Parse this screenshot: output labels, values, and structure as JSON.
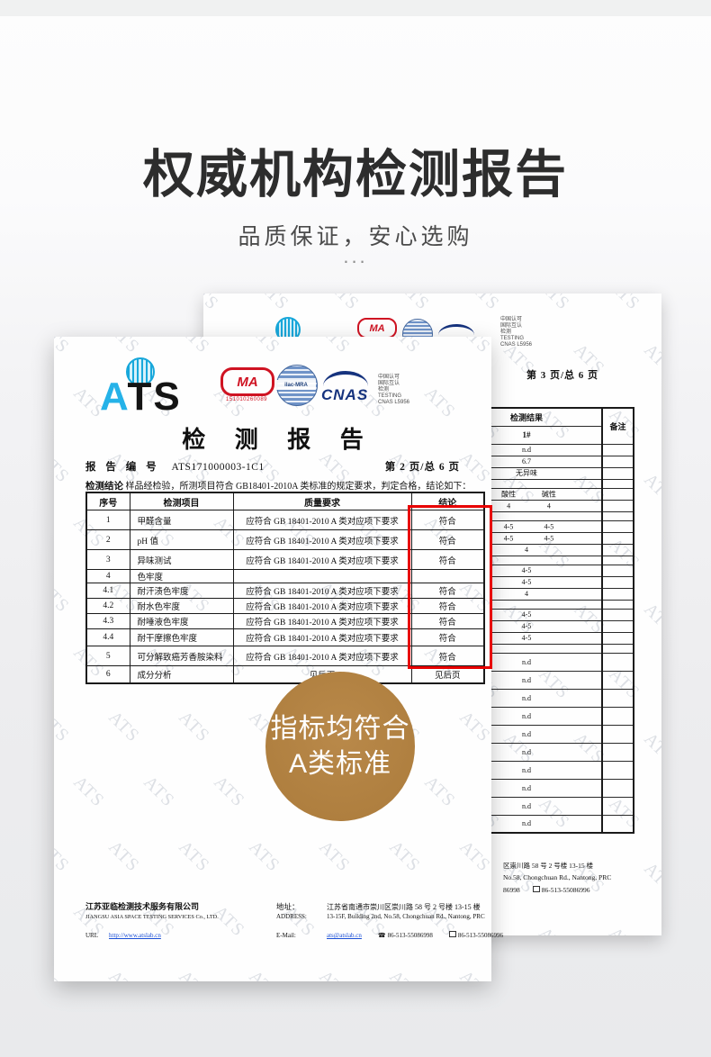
{
  "page": {
    "title": "权威机构检测报告",
    "subtitle": "品质保证，安心选购",
    "dots": "..."
  },
  "watermark": {
    "text": "ATS"
  },
  "badge": {
    "line1": "指标均符合",
    "line2": "A类标准",
    "color": "#b2813f"
  },
  "front_doc": {
    "logos": {
      "ats_a": "A",
      "ats_ts": "TS",
      "cma_text": "MA",
      "cma_number": "151010260089",
      "ilac_text": "ilac-MRA",
      "cnas_text": "CNAS",
      "cnas_side_lines": [
        "中国认可",
        "国际互认",
        "检测",
        "TESTING",
        "CNAS L5956"
      ]
    },
    "report_title": "检 测 报 告",
    "report_no_label": "报 告 编 号",
    "report_no": "ATS171000003-1C1",
    "page_label": "第 2 页/总 6 页",
    "conclusion_label": "检测结论",
    "conclusion_text": "样品经检验，所测项目符合 GB18401-2010A 类标准的规定要求，判定合格，结论如下：",
    "table": {
      "headers": [
        "序号",
        "检测项目",
        "质量要求",
        "结论"
      ],
      "rows": [
        [
          "1",
          "甲醛含量",
          "应符合 GB 18401-2010 A 类对应项下要求",
          "符合"
        ],
        [
          "2",
          "pH 值",
          "应符合 GB 18401-2010 A 类对应项下要求",
          "符合"
        ],
        [
          "3",
          "异味测试",
          "应符合 GB 18401-2010 A 类对应项下要求",
          "符合"
        ],
        [
          "4",
          "色牢度",
          "",
          ""
        ],
        [
          "4.1",
          "耐汗渍色牢度",
          "应符合 GB 18401-2010 A 类对应项下要求",
          "符合"
        ],
        [
          "4.2",
          "耐水色牢度",
          "应符合 GB 18401-2010 A 类对应项下要求",
          "符合"
        ],
        [
          "4.3",
          "耐唾液色牢度",
          "应符合 GB 18401-2010 A 类对应项下要求",
          "符合"
        ],
        [
          "4.4",
          "耐干摩擦色牢度",
          "应符合 GB 18401-2010 A 类对应项下要求",
          "符合"
        ],
        [
          "5",
          "可分解致癌芳香胺染料",
          "应符合 GB 18401-2010 A 类对应项下要求",
          "符合"
        ],
        [
          "6",
          "成分分析",
          "见后页",
          "见后页"
        ]
      ]
    },
    "footer": {
      "company_cn": "江苏亚临检测技术服务有限公司",
      "company_en": "JIANGSU ASIA SPACE TESTING SERVICES Co., LTD.",
      "url_label": "URL",
      "url": "http://www.atslab.cn",
      "addr_label_cn": "地址：",
      "addr_cn": "江苏省南通市崇川区崇川路 58 号 2 号楼 13-15 楼",
      "addr_label_en": "ADDRESS:",
      "addr_en": "13-15F, Building 2nd, No.58, Chongchuan Rd., Nantong, PRC",
      "email_label": "E-Mail:",
      "email": "ats@atslab.cn",
      "tel": "86-513-55086998",
      "fax": "86-513-55086996"
    }
  },
  "back_doc": {
    "page_label": "第 3 页/总 6 页",
    "cma_text": "MA",
    "cnas_text": "CNAS",
    "side_lines": [
      "中国认可",
      "国际互认",
      "检测",
      "TESTING",
      "CNAS L5956"
    ],
    "table": {
      "header_result": "检测结果",
      "header_remark": "备注",
      "sub_header": "1#",
      "rows": [
        {
          "kind": "single",
          "value": "n.d"
        },
        {
          "kind": "single",
          "value": "6.7"
        },
        {
          "kind": "single",
          "value": "无异味"
        },
        {
          "kind": "spacer"
        },
        {
          "kind": "pair",
          "left": "酸性",
          "right": "碱性"
        },
        {
          "kind": "pair",
          "left": "4",
          "right": "4"
        },
        {
          "kind": "spacer"
        },
        {
          "kind": "pair",
          "left": "4-5",
          "right": "4-5"
        },
        {
          "kind": "pair",
          "left": "4-5",
          "right": "4-5"
        },
        {
          "kind": "single",
          "value": "4"
        },
        {
          "kind": "spacer"
        },
        {
          "kind": "single",
          "value": "4-5"
        },
        {
          "kind": "single",
          "value": "4-5"
        },
        {
          "kind": "single",
          "value": "4"
        },
        {
          "kind": "spacer"
        },
        {
          "kind": "single",
          "value": "4-5"
        },
        {
          "kind": "single",
          "value": "4-5"
        },
        {
          "kind": "single",
          "value": "4-5"
        },
        {
          "kind": "spacer"
        },
        {
          "kind": "single",
          "value": "n.d",
          "tall": true
        },
        {
          "kind": "single",
          "value": "n.d",
          "tall": true
        },
        {
          "kind": "single",
          "value": "n.d",
          "tall": true
        },
        {
          "kind": "single",
          "value": "n.d",
          "tall": true
        },
        {
          "kind": "single",
          "value": "n.d",
          "tall": true
        },
        {
          "kind": "single",
          "value": "n.d",
          "tall": true
        },
        {
          "kind": "single",
          "value": "n.d",
          "tall": true
        },
        {
          "kind": "single",
          "value": "n.d",
          "tall": true
        },
        {
          "kind": "single",
          "value": "n.d",
          "tall": true
        },
        {
          "kind": "single",
          "value": "n.d",
          "tall": true
        }
      ]
    },
    "footer_lines": [
      "区崇川路 58 号 2 号楼 13-15 楼",
      "No.58, Chongchuan Rd., Nantong, PRC",
      "86998",
      "86-513-55086996"
    ]
  }
}
